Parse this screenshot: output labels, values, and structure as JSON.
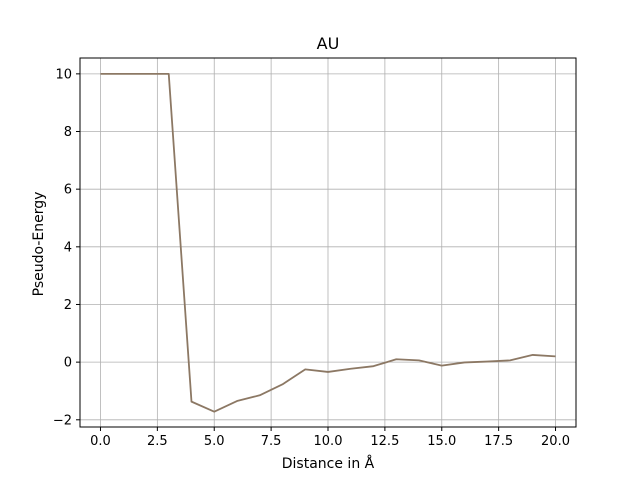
{
  "chart_data": {
    "type": "line",
    "title": "AU",
    "xlabel": "Distance in Å",
    "ylabel": "Pseudo-Energy",
    "xlim": [
      -0.9,
      20.9
    ],
    "ylim": [
      -2.25,
      10.55
    ],
    "xticks": [
      0,
      2.5,
      5,
      7.5,
      10,
      12.5,
      15,
      17.5,
      20
    ],
    "xtick_labels": [
      "0.0",
      "2.5",
      "5.0",
      "7.5",
      "10.0",
      "12.5",
      "15.0",
      "17.5",
      "20.0"
    ],
    "yticks": [
      -2,
      0,
      2,
      4,
      6,
      8,
      10
    ],
    "ytick_labels": [
      "−2",
      "0",
      "2",
      "4",
      "6",
      "8",
      "10"
    ],
    "grid": true,
    "series": [
      {
        "color": "#8c7864",
        "x": [
          0,
          1,
          2,
          3,
          4,
          5,
          6,
          7,
          8,
          9,
          10,
          11,
          12,
          13,
          14,
          15,
          16,
          17,
          18,
          19,
          20
        ],
        "y": [
          10,
          10,
          10,
          10,
          -1.37,
          -1.72,
          -1.35,
          -1.15,
          -0.77,
          -0.25,
          -0.34,
          -0.23,
          -0.14,
          0.1,
          0.06,
          -0.12,
          -0.01,
          0.02,
          0.06,
          0.25,
          0.2
        ]
      }
    ]
  }
}
